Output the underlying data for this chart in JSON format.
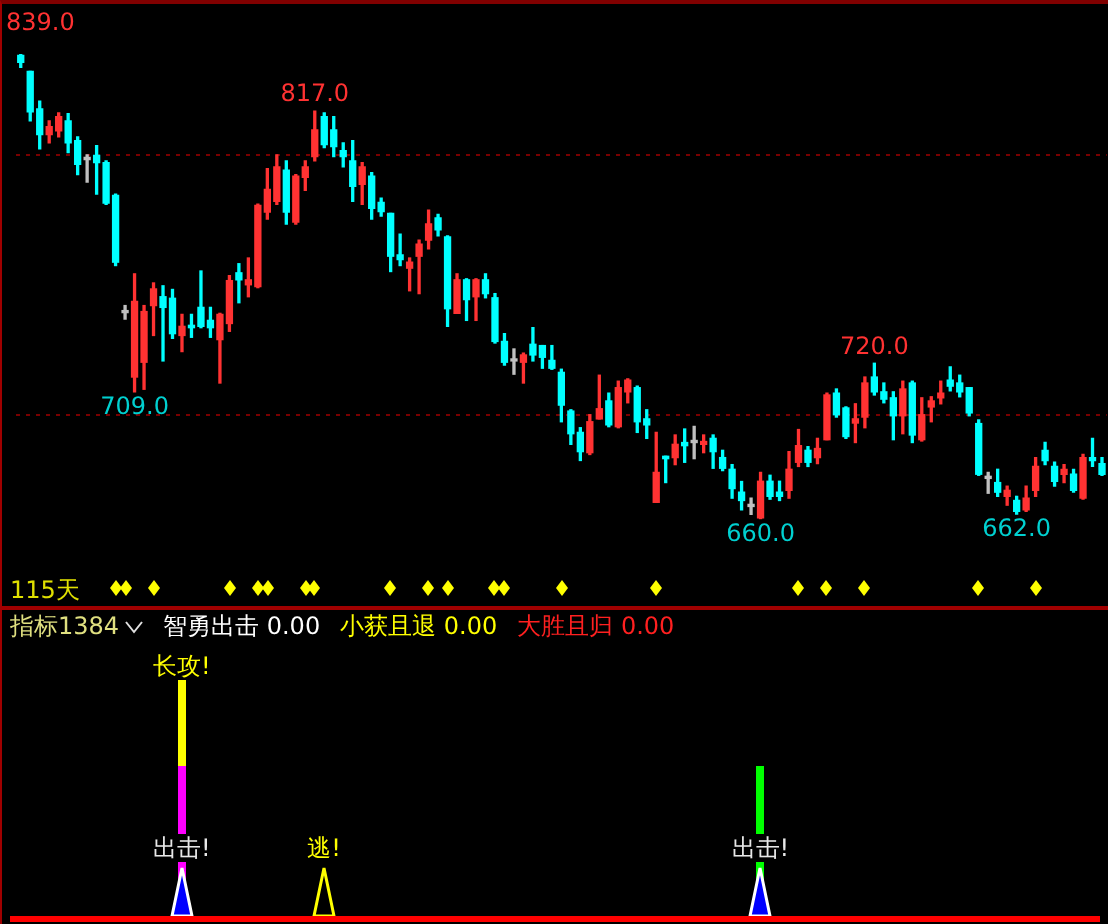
{
  "chart_data": [
    {
      "type": "candlestick",
      "categories": [
        null,
        null,
        null,
        null,
        null,
        null,
        null,
        null,
        null,
        null,
        null,
        null,
        null,
        null,
        null,
        null,
        null,
        null,
        null,
        null,
        null,
        null,
        null,
        null,
        null,
        null,
        null,
        null,
        null,
        null,
        null,
        null,
        null,
        null,
        null,
        null,
        null,
        null,
        null,
        null,
        null,
        null,
        null,
        null,
        null,
        null,
        null,
        null,
        null,
        null,
        null,
        null,
        null,
        null,
        null,
        null,
        null,
        null,
        null,
        null,
        null,
        null,
        null,
        null,
        null,
        null,
        null,
        null,
        null,
        null,
        null,
        null,
        null,
        null,
        null,
        null,
        null,
        null,
        null,
        null,
        null,
        null,
        null,
        null,
        null,
        null,
        null,
        null,
        null,
        null,
        null,
        null,
        null,
        null,
        null,
        null,
        null,
        null,
        null,
        null,
        null,
        null,
        null,
        null,
        null,
        null,
        null,
        null,
        null,
        null,
        null,
        null,
        null,
        null,
        null
      ],
      "ohlc": [
        [
          838.5,
          839,
          833.9,
          835.8
        ],
        [
          832.3,
          832.3,
          813.3,
          816.7
        ],
        [
          817.9,
          820.9,
          802.5,
          808
        ],
        [
          808,
          813.3,
          804.8,
          811
        ],
        [
          809.4,
          816.3,
          807.1,
          814.9
        ],
        [
          813.3,
          816,
          801.1,
          804.8
        ],
        [
          805.7,
          807.1,
          792.6,
          796.5
        ],
        [
          798.4,
          800.2,
          789.7,
          798.4
        ],
        [
          800,
          803.7,
          785.1,
          797.2
        ],
        [
          797.2,
          797.9,
          781.2,
          781.6
        ],
        [
          784.6,
          785.1,
          757.6,
          758.9
        ],
        [
          739.5,
          742.2,
          737,
          739.5
        ],
        [
          714.7,
          754.4,
          709,
          743.8
        ],
        [
          720.4,
          742.2,
          710,
          739.9
        ],
        [
          742.2,
          750.9,
          730.7,
          748.6
        ],
        [
          745.6,
          749.8,
          720.9,
          741.5
        ],
        [
          745,
          748.4,
          729.6,
          731.4
        ],
        [
          730.7,
          738.8,
          724.5,
          734.2
        ],
        [
          734.6,
          738.8,
          730,
          733.7
        ],
        [
          741.5,
          755.5,
          733.7,
          734.2
        ],
        [
          736.5,
          741.5,
          730,
          733.7
        ],
        [
          729.1,
          739.2,
          712.4,
          738.8
        ],
        [
          735.3,
          753.7,
          732.3,
          751.8
        ],
        [
          754.8,
          758.3,
          743.3,
          752.1
        ],
        [
          750.2,
          760.5,
          745.6,
          752.1
        ],
        [
          749.5,
          781.2,
          749.1,
          780.7
        ],
        [
          778.2,
          794.9,
          775.5,
          786.9
        ],
        [
          782.3,
          800.2,
          781.2,
          795.6
        ],
        [
          794.3,
          797.9,
          773.6,
          778.2
        ],
        [
          774.3,
          792.6,
          773.6,
          792
        ],
        [
          791.5,
          797.9,
          786.5,
          795.6
        ],
        [
          799.5,
          817,
          797.9,
          809.8
        ],
        [
          814.9,
          816.3,
          803,
          804.1
        ],
        [
          809.8,
          814.9,
          799.5,
          803.4
        ],
        [
          801.8,
          804.8,
          795.6,
          799.5
        ],
        [
          797.9,
          805.7,
          782.3,
          788.1
        ],
        [
          788.8,
          797.2,
          781.2,
          795.6
        ],
        [
          792,
          793.3,
          775.5,
          779.6
        ],
        [
          781.9,
          783.5,
          776.6,
          778.4
        ],
        [
          777.7,
          777.7,
          755.3,
          761.2
        ],
        [
          761.7,
          769.7,
          757.6,
          759.9
        ],
        [
          756.6,
          760.5,
          747.9,
          758.9
        ],
        [
          761.2,
          767.4,
          746.8,
          765.8
        ],
        [
          767.4,
          778.9,
          764,
          773.6
        ],
        [
          775.9,
          777.3,
          769,
          771.3
        ],
        [
          768.6,
          769,
          734.2,
          741
        ],
        [
          739.2,
          754.4,
          739.2,
          752.1
        ],
        [
          752.1,
          752.5,
          736.5,
          744.5
        ],
        [
          745.6,
          752.5,
          736.5,
          752.1
        ],
        [
          752.1,
          754.4,
          745.2,
          746.8
        ],
        [
          745.2,
          746.8,
          727.8,
          728.4
        ],
        [
          728.4,
          731.4,
          719.3,
          720.4
        ],
        [
          720.9,
          725.5,
          715.8,
          720.9
        ],
        [
          720.4,
          723.9,
          712.4,
          723.2
        ],
        [
          727.3,
          733.7,
          720.9,
          723.2
        ],
        [
          726.8,
          726.8,
          718.1,
          722.3
        ],
        [
          721.1,
          726.8,
          717.7,
          718.1
        ],
        [
          716.5,
          717.7,
          697.5,
          703.9
        ],
        [
          701.6,
          702.1,
          688.8,
          692.9
        ],
        [
          693.4,
          695.2,
          682.6,
          686
        ],
        [
          685.6,
          700.2,
          684.9,
          697.5
        ],
        [
          698.6,
          715.4,
          698.6,
          702.5
        ],
        [
          705.5,
          708.5,
          695.6,
          696.3
        ],
        [
          695.6,
          713.1,
          695.2,
          710.6
        ],
        [
          709,
          714,
          704.8,
          713.5
        ],
        [
          710.6,
          711.2,
          693.4,
          697.5
        ],
        [
          698.6,
          702.1,
          691.1,
          696.3
        ],
        [
          666.5,
          693.4,
          666.5,
          678
        ],
        [
          684.2,
          684.2,
          674.1,
          683.3
        ],
        [
          683.7,
          692.4,
          681,
          688.8
        ],
        [
          689.5,
          694.7,
          681.9,
          688.3
        ],
        [
          689.5,
          695.7,
          683.3,
          690.3
        ],
        [
          688.8,
          692.4,
          685.6,
          689.9
        ],
        [
          691.1,
          692.4,
          679.6,
          686
        ],
        [
          683.7,
          686.5,
          678.7,
          679.6
        ],
        [
          679.2,
          681,
          668.1,
          671.8
        ],
        [
          670.4,
          674.5,
          663.6,
          667.2
        ],
        [
          664.9,
          668.1,
          661.9,
          665.7
        ],
        [
          660.5,
          678,
          660,
          674.6
        ],
        [
          674.6,
          676.9,
          667.7,
          668.8
        ],
        [
          670.4,
          674.6,
          667.2,
          668.8
        ],
        [
          671.1,
          686,
          668.1,
          679.2
        ],
        [
          681.9,
          694.5,
          680.3,
          688.3
        ],
        [
          686.5,
          687.9,
          680.3,
          681.9
        ],
        [
          683.7,
          691.1,
          681.4,
          687.2
        ],
        [
          690.6,
          708.5,
          690.6,
          707.8
        ],
        [
          708.5,
          710.1,
          699.3,
          700.2
        ],
        [
          702.8,
          703.2,
          691.1,
          691.8
        ],
        [
          697,
          704.4,
          689.5,
          698.6
        ],
        [
          699.3,
          714.7,
          695.2,
          712.4
        ],
        [
          714.7,
          720,
          707.8,
          709
        ],
        [
          709,
          712.4,
          704.8,
          706.2
        ],
        [
          706.7,
          709,
          690.6,
          699.8
        ],
        [
          699.8,
          713.1,
          692.9,
          710.1
        ],
        [
          712.4,
          713.1,
          689.5,
          692.4
        ],
        [
          690.6,
          706.7,
          690.1,
          700.2
        ],
        [
          703.2,
          707.1,
          697.5,
          705.5
        ],
        [
          706.7,
          713.1,
          704.4,
          708.5
        ],
        [
          713.5,
          718.6,
          709.4,
          711.2
        ],
        [
          712.4,
          715.4,
          707.1,
          709
        ],
        [
          710.6,
          710.6,
          699.8,
          700.9
        ],
        [
          696.8,
          698.2,
          676.9,
          677.3
        ],
        [
          675.7,
          678,
          670,
          676.5
        ],
        [
          674.1,
          679.2,
          668.8,
          670.4
        ],
        [
          668.8,
          672.7,
          665.4,
          671.1
        ],
        [
          667.2,
          668.8,
          662,
          663
        ],
        [
          663.6,
          672.7,
          663,
          668.1
        ],
        [
          671.1,
          683.7,
          668.8,
          680.3
        ],
        [
          686.5,
          689.5,
          681,
          682.6
        ],
        [
          680.3,
          681.9,
          672.7,
          674.6
        ],
        [
          677.3,
          681,
          674.1,
          679.2
        ],
        [
          677.3,
          679.2,
          670.4,
          671.1
        ],
        [
          668.1,
          684.9,
          667.7,
          683.7
        ],
        [
          683.7,
          691.1,
          680.3,
          682.6
        ],
        [
          681.4,
          683.7,
          676.9,
          677.3
        ]
      ],
      "colors": [
        "#00ffff",
        "#00ffff",
        "#00ffff",
        "#ff3232",
        "#ff3232",
        "#00ffff",
        "#00ffff",
        "#c0c0c0",
        "#00ffff",
        "#00ffff",
        "#00ffff",
        "#c0c0c0",
        "#ff3232",
        "#ff3232",
        "#ff3232",
        "#00ffff",
        "#00ffff",
        "#ff3232",
        "#00ffff",
        "#00ffff",
        "#00ffff",
        "#ff3232",
        "#ff3232",
        "#00ffff",
        "#ff3232",
        "#ff3232",
        "#ff3232",
        "#ff3232",
        "#00ffff",
        "#ff3232",
        "#ff3232",
        "#ff3232",
        "#00ffff",
        "#00ffff",
        "#00ffff",
        "#00ffff",
        "#ff3232",
        "#00ffff",
        "#00ffff",
        "#00ffff",
        "#00ffff",
        "#ff3232",
        "#ff3232",
        "#ff3232",
        "#00ffff",
        "#00ffff",
        "#ff3232",
        "#00ffff",
        "#ff3232",
        "#00ffff",
        "#00ffff",
        "#00ffff",
        "#c0c0c0",
        "#ff3232",
        "#00ffff",
        "#00ffff",
        "#00ffff",
        "#00ffff",
        "#00ffff",
        "#00ffff",
        "#ff3232",
        "#ff3232",
        "#00ffff",
        "#ff3232",
        "#ff3232",
        "#00ffff",
        "#00ffff",
        "#ff3232",
        "#00ffff",
        "#ff3232",
        "#00ffff",
        "#c0c0c0",
        "#ff3232",
        "#00ffff",
        "#00ffff",
        "#00ffff",
        "#00ffff",
        "#c0c0c0",
        "#ff3232",
        "#00ffff",
        "#00ffff",
        "#ff3232",
        "#ff3232",
        "#00ffff",
        "#ff3232",
        "#ff3232",
        "#00ffff",
        "#00ffff",
        "#ff3232",
        "#ff3232",
        "#00ffff",
        "#00ffff",
        "#00ffff",
        "#ff3232",
        "#00ffff",
        "#ff3232",
        "#ff3232",
        "#ff3232",
        "#00ffff",
        "#00ffff",
        "#00ffff",
        "#00ffff",
        "#c0c0c0",
        "#00ffff",
        "#ff3232",
        "#00ffff",
        "#ff3232",
        "#ff3232",
        "#00ffff",
        "#00ffff",
        "#ff3232",
        "#00ffff",
        "#ff3232",
        "#00ffff",
        "#00ffff"
      ],
      "yticks": [
        {
          "value": 700,
          "label": null
        },
        {
          "value": 800,
          "label": null
        }
      ],
      "grid": "y",
      "annotations": [
        "839.0",
        {
          "text": "817.0",
          "y": 817
        },
        {
          "text": "709.0",
          "y": 709
        },
        {
          "text": "720.0",
          "y": 720
        },
        {
          "text": "660.0",
          "y": 660
        },
        {
          "text": "662.0",
          "y": 662
        },
        "115天"
      ]
    },
    {
      "type": "other",
      "annotations": [
        "指标1384",
        "智勇出击 0.00",
        "小获且退 0.00",
        "大胜且归 0.00",
        "长攻!",
        "出击!",
        "逃!",
        "出击!"
      ]
    }
  ]
}
